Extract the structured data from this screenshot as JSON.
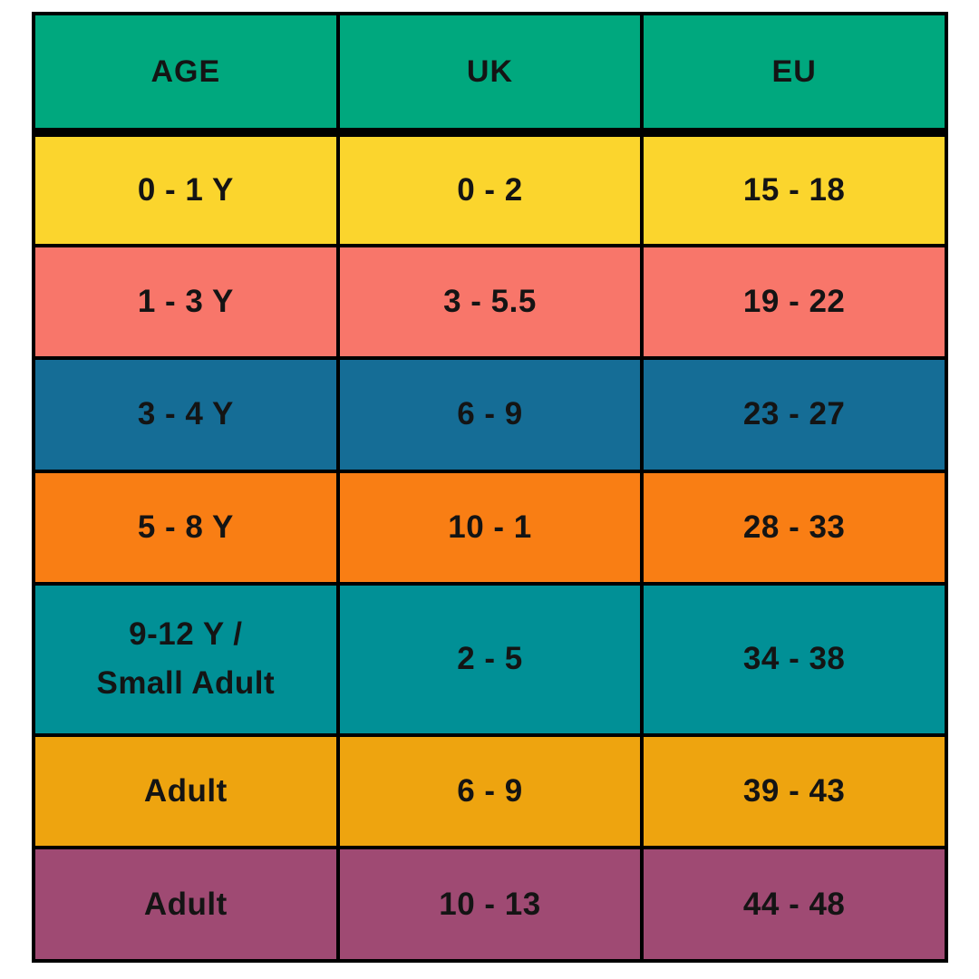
{
  "chart_data": {
    "type": "table",
    "columns": [
      {
        "label": "AGE"
      },
      {
        "label": "UK"
      },
      {
        "label": "EU"
      }
    ],
    "rows": [
      {
        "age": "0 - 1 Y",
        "uk": "0 - 2",
        "eu": "15 - 18",
        "bg": "#FBD52D"
      },
      {
        "age": "1 - 3 Y",
        "uk": "3 - 5.5",
        "eu": "19 - 22",
        "bg": "#F8766A"
      },
      {
        "age": "3 - 4 Y",
        "uk": "6 - 9",
        "eu": "23 - 27",
        "bg": "#156D96"
      },
      {
        "age": "5 - 8 Y",
        "uk": "10 - 1",
        "eu": "28 - 33",
        "bg": "#F97E14"
      },
      {
        "age": "9-12 Y /\nSmall Adult",
        "uk": "2 - 5",
        "eu": "34 - 38",
        "bg": "#019096"
      },
      {
        "age": "Adult",
        "uk": "6 - 9",
        "eu": "39 - 43",
        "bg": "#EEA40F"
      },
      {
        "age": "Adult",
        "uk": "10 - 13",
        "eu": "44 - 48",
        "bg": "#9F4A73"
      }
    ],
    "header_bg": "#00A87E",
    "text_color": "#141414",
    "border_color": "#000000",
    "layout_hints": {
      "grid": "on",
      "header_bottom_border": "thick"
    }
  }
}
